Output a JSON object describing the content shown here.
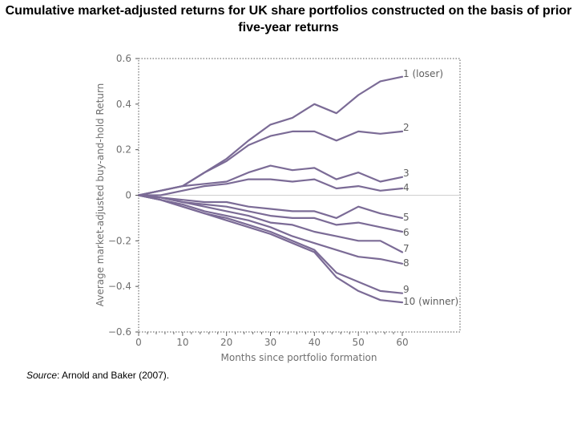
{
  "title": "Cumulative market-adjusted returns for UK share portfolios constructed on the basis of prior five-year returns",
  "source": {
    "prefix": "Source",
    "rest": ": Arnold and Baker (2007)."
  },
  "chart_data": {
    "type": "line",
    "title": "Cumulative market-adjusted returns for UK share portfolios constructed on the basis of prior five-year returns",
    "xlabel": "Months since portfolio formation",
    "ylabel": "Average market-adjusted buy-and-hold Return",
    "xlim": [
      0,
      60
    ],
    "ylim": [
      -0.6,
      0.6
    ],
    "xticks": [
      0,
      10,
      20,
      30,
      40,
      50,
      60
    ],
    "yticks": [
      0.6,
      0.4,
      0.2,
      0,
      -0.2,
      -0.4,
      -0.6
    ],
    "ytick_labels": [
      "0.6",
      "0.4",
      "0.2",
      "0",
      "−0.2",
      "−0.4",
      "−0.6"
    ],
    "line_color": "#7b6b96",
    "zero_line_color": "#cfcfcf",
    "grid": false,
    "legend": "none (labels at line ends)",
    "x": [
      0,
      5,
      10,
      15,
      20,
      25,
      30,
      35,
      40,
      45,
      50,
      55,
      60
    ],
    "series": [
      {
        "name": "1 (loser)",
        "values": [
          0,
          0.02,
          0.04,
          0.1,
          0.16,
          0.24,
          0.31,
          0.34,
          0.4,
          0.36,
          0.44,
          0.5,
          0.52
        ]
      },
      {
        "name": "2",
        "values": [
          0,
          0.02,
          0.04,
          0.1,
          0.15,
          0.22,
          0.26,
          0.28,
          0.28,
          0.24,
          0.28,
          0.27,
          0.28
        ]
      },
      {
        "name": "3",
        "values": [
          0,
          0.02,
          0.04,
          0.05,
          0.06,
          0.1,
          0.13,
          0.11,
          0.12,
          0.07,
          0.1,
          0.06,
          0.08
        ]
      },
      {
        "name": "4",
        "values": [
          0,
          0.0,
          0.02,
          0.04,
          0.05,
          0.07,
          0.07,
          0.06,
          0.07,
          0.03,
          0.04,
          0.02,
          0.03
        ]
      },
      {
        "name": "5",
        "values": [
          0,
          -0.01,
          -0.02,
          -0.03,
          -0.03,
          -0.05,
          -0.06,
          -0.07,
          -0.07,
          -0.1,
          -0.05,
          -0.08,
          -0.1
        ]
      },
      {
        "name": "6",
        "values": [
          0,
          -0.01,
          -0.03,
          -0.04,
          -0.05,
          -0.07,
          -0.09,
          -0.1,
          -0.1,
          -0.13,
          -0.12,
          -0.14,
          -0.16
        ]
      },
      {
        "name": "7",
        "values": [
          0,
          -0.01,
          -0.03,
          -0.05,
          -0.07,
          -0.09,
          -0.12,
          -0.13,
          -0.16,
          -0.18,
          -0.2,
          -0.2,
          -0.25
        ]
      },
      {
        "name": "8",
        "values": [
          0,
          -0.02,
          -0.04,
          -0.07,
          -0.09,
          -0.11,
          -0.14,
          -0.18,
          -0.21,
          -0.24,
          -0.27,
          -0.28,
          -0.3
        ]
      },
      {
        "name": "9",
        "values": [
          0,
          -0.02,
          -0.05,
          -0.08,
          -0.1,
          -0.13,
          -0.16,
          -0.2,
          -0.24,
          -0.34,
          -0.38,
          -0.42,
          -0.43
        ]
      },
      {
        "name": "10 (winner)",
        "values": [
          0,
          -0.02,
          -0.05,
          -0.08,
          -0.11,
          -0.14,
          -0.17,
          -0.21,
          -0.25,
          -0.36,
          -0.42,
          -0.46,
          -0.47
        ]
      }
    ]
  }
}
